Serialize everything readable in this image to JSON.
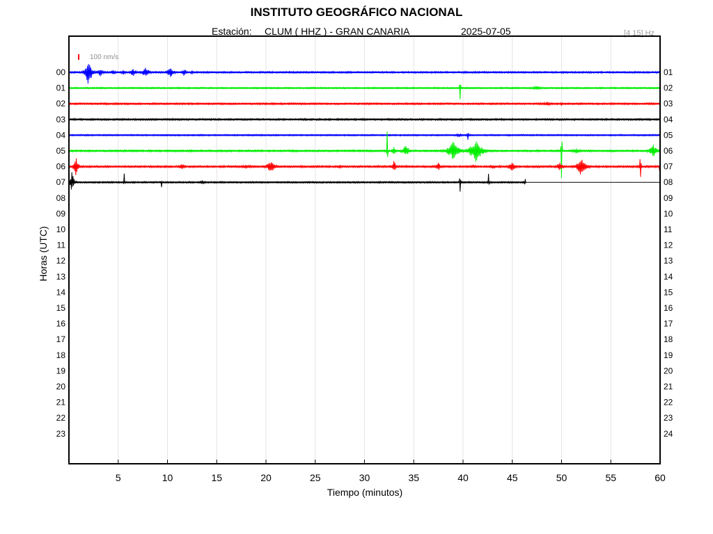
{
  "header": {
    "title": "INSTITUTO GEOGRÁFICO NACIONAL",
    "station_label": "Estación:",
    "station": "CLUM ( HHZ ) - GRAN CANARIA",
    "date": "2025-07-05",
    "filter": "[4 15] Hz"
  },
  "chart_data": {
    "type": "line",
    "xlabel": "Tiempo (minutos)",
    "ylabel": "Horas (UTC)",
    "xlim": [
      0,
      60
    ],
    "x_ticks": [
      5,
      10,
      15,
      20,
      25,
      30,
      35,
      40,
      45,
      50,
      55,
      60
    ],
    "y_left_labels": [
      "00",
      "01",
      "02",
      "03",
      "04",
      "05",
      "06",
      "07",
      "08",
      "09",
      "10",
      "11",
      "12",
      "13",
      "14",
      "15",
      "16",
      "17",
      "18",
      "19",
      "20",
      "21",
      "22",
      "23"
    ],
    "y_right_labels": [
      "01",
      "02",
      "03",
      "04",
      "05",
      "06",
      "07",
      "08",
      "09",
      "10",
      "11",
      "12",
      "13",
      "14",
      "15",
      "16",
      "17",
      "18",
      "19",
      "20",
      "21",
      "22",
      "23",
      "24"
    ],
    "grid": "vertical",
    "scale_label": "100 nm/s",
    "scale_color": "#ff0000",
    "colors": [
      "#0000ff",
      "#00ee00",
      "#ff0000",
      "#000000"
    ],
    "series": [
      {
        "hour": "00",
        "color": "#0000ff",
        "x_end": 60,
        "noise": 1.2,
        "bursts": [
          {
            "t": 2.0,
            "amp": 22,
            "dur": 0.7
          },
          {
            "t": 3.2,
            "amp": 6,
            "dur": 0.8
          },
          {
            "t": 4.5,
            "amp": 5,
            "dur": 0.5
          },
          {
            "t": 5.5,
            "amp": 5,
            "dur": 0.5
          },
          {
            "t": 6.5,
            "amp": 7,
            "dur": 0.6
          },
          {
            "t": 7.8,
            "amp": 8,
            "dur": 0.8
          },
          {
            "t": 10.3,
            "amp": 9,
            "dur": 0.7
          },
          {
            "t": 11.7,
            "amp": 7,
            "dur": 0.5
          },
          {
            "t": 12.5,
            "amp": 4,
            "dur": 0.3
          }
        ]
      },
      {
        "hour": "01",
        "color": "#00ee00",
        "x_end": 60,
        "noise": 1.0,
        "bursts": [
          {
            "t": 39.7,
            "amp": 25,
            "dur": 0.1
          },
          {
            "t": 47.5,
            "amp": 3,
            "dur": 1.2
          }
        ]
      },
      {
        "hour": "02",
        "color": "#ff0000",
        "x_end": 60,
        "noise": 1.2,
        "bursts": [
          {
            "t": 48.5,
            "amp": 3,
            "dur": 1.4
          },
          {
            "t": 50.0,
            "amp": 4,
            "dur": 0.1
          }
        ]
      },
      {
        "hour": "03",
        "color": "#000000",
        "x_end": 60,
        "noise": 1.2,
        "bursts": []
      },
      {
        "hour": "04",
        "color": "#0000ff",
        "x_end": 60,
        "noise": 1.0,
        "bursts": [
          {
            "t": 39.6,
            "amp": 3,
            "dur": 0.6
          },
          {
            "t": 40.5,
            "amp": 8,
            "dur": 0.15
          }
        ]
      },
      {
        "hour": "05",
        "color": "#00ee00",
        "x_end": 60,
        "noise": 1.3,
        "bursts": [
          {
            "t": 32.3,
            "amp": 55,
            "dur": 0.08
          },
          {
            "t": 33.0,
            "amp": 6,
            "dur": 0.5
          },
          {
            "t": 34.2,
            "amp": 9,
            "dur": 0.8
          },
          {
            "t": 39.0,
            "amp": 14,
            "dur": 1.3
          },
          {
            "t": 41.3,
            "amp": 17,
            "dur": 1.4
          },
          {
            "t": 50.0,
            "amp": 80,
            "dur": 0.08
          },
          {
            "t": 51.5,
            "amp": 4,
            "dur": 1.0
          },
          {
            "t": 59.3,
            "amp": 11,
            "dur": 0.8
          }
        ]
      },
      {
        "hour": "06",
        "color": "#ff0000",
        "x_end": 60,
        "noise": 1.3,
        "bursts": [
          {
            "t": 0.7,
            "amp": 20,
            "dur": 0.4
          },
          {
            "t": 11.5,
            "amp": 5,
            "dur": 0.8
          },
          {
            "t": 18.0,
            "amp": 3,
            "dur": 1.5
          },
          {
            "t": 20.5,
            "amp": 10,
            "dur": 0.9
          },
          {
            "t": 27.5,
            "amp": 4,
            "dur": 0.3
          },
          {
            "t": 33.0,
            "amp": 9,
            "dur": 0.5
          },
          {
            "t": 37.5,
            "amp": 6,
            "dur": 0.6
          },
          {
            "t": 41.0,
            "amp": 3,
            "dur": 1.0
          },
          {
            "t": 43.0,
            "amp": 4,
            "dur": 0.6
          },
          {
            "t": 45.0,
            "amp": 8,
            "dur": 0.8
          },
          {
            "t": 49.8,
            "amp": 6,
            "dur": 0.8
          },
          {
            "t": 52.0,
            "amp": 14,
            "dur": 1.0
          },
          {
            "t": 58.0,
            "amp": 35,
            "dur": 0.1
          },
          {
            "t": 60.0,
            "amp": 30,
            "dur": 0.1
          }
        ]
      },
      {
        "hour": "07",
        "color": "#000000",
        "x_end": 46.4,
        "noise": 1.1,
        "bursts": [
          {
            "t": 0.3,
            "amp": 16,
            "dur": 0.5
          },
          {
            "t": 5.6,
            "amp": 18,
            "dur": 0.08
          },
          {
            "t": 9.4,
            "amp": 10,
            "dur": 0.08
          },
          {
            "t": 13.5,
            "amp": 3,
            "dur": 0.8
          },
          {
            "t": 39.7,
            "amp": 25,
            "dur": 0.1
          },
          {
            "t": 42.6,
            "amp": 20,
            "dur": 0.08
          },
          {
            "t": 46.3,
            "amp": 16,
            "dur": 0.08
          }
        ]
      }
    ]
  }
}
